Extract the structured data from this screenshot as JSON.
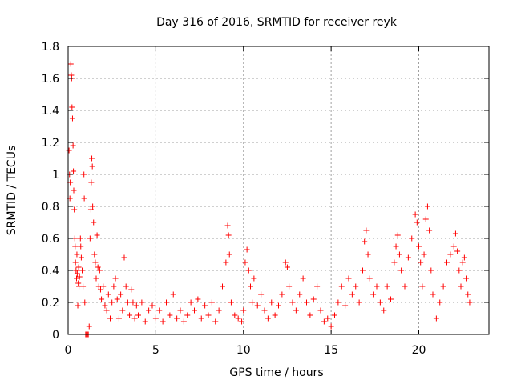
{
  "chart_data": {
    "type": "scatter",
    "title": "Day 316 of 2016, SRMTID for receiver reyk",
    "xlabel": "GPS time / hours",
    "ylabel": "SRMTID / TECUs",
    "xlim": [
      0,
      24
    ],
    "ylim": [
      0,
      1.8
    ],
    "xticks": [
      "0",
      "5",
      "10",
      "15",
      "20"
    ],
    "yticks": [
      "0",
      "0.2",
      "0.4",
      "0.6",
      "0.8",
      "1",
      "1.2",
      "1.4",
      "1.6",
      "1.8"
    ],
    "grid": true,
    "marker": "+",
    "color": "#ff0000",
    "series": [
      {
        "name": "SRMTID",
        "points": [
          [
            0.05,
            1.15
          ],
          [
            0.08,
            1.0
          ],
          [
            0.1,
            0.85
          ],
          [
            0.12,
            0.95
          ],
          [
            0.15,
            1.69
          ],
          [
            0.18,
            1.62
          ],
          [
            0.2,
            1.6
          ],
          [
            0.22,
            1.42
          ],
          [
            0.25,
            1.35
          ],
          [
            0.28,
            1.18
          ],
          [
            0.3,
            1.02
          ],
          [
            0.32,
            0.9
          ],
          [
            0.35,
            0.78
          ],
          [
            0.38,
            0.6
          ],
          [
            0.4,
            0.55
          ],
          [
            0.42,
            0.45
          ],
          [
            0.45,
            0.4
          ],
          [
            0.48,
            0.35
          ],
          [
            0.5,
            0.5
          ],
          [
            0.52,
            0.38
          ],
          [
            0.55,
            0.18
          ],
          [
            0.58,
            0.32
          ],
          [
            0.6,
            0.42
          ],
          [
            0.62,
            0.3
          ],
          [
            0.65,
            0.36
          ],
          [
            0.7,
            0.6
          ],
          [
            0.72,
            0.55
          ],
          [
            0.75,
            0.48
          ],
          [
            0.8,
            0.4
          ],
          [
            0.85,
            0.3
          ],
          [
            0.9,
            1.0
          ],
          [
            0.92,
            0.85
          ],
          [
            0.95,
            0.2
          ],
          [
            1.0,
            0.0
          ],
          [
            1.05,
            0.0
          ],
          [
            1.1,
            0.0
          ],
          [
            1.15,
            0.0
          ],
          [
            1.2,
            0.05
          ],
          [
            1.25,
            0.6
          ],
          [
            1.3,
            0.78
          ],
          [
            1.32,
            0.95
          ],
          [
            1.35,
            1.1
          ],
          [
            1.38,
            1.05
          ],
          [
            1.4,
            0.8
          ],
          [
            1.45,
            0.7
          ],
          [
            1.5,
            0.5
          ],
          [
            1.55,
            0.45
          ],
          [
            1.6,
            0.35
          ],
          [
            1.65,
            0.62
          ],
          [
            1.7,
            0.42
          ],
          [
            1.75,
            0.3
          ],
          [
            1.8,
            0.4
          ],
          [
            1.85,
            0.28
          ],
          [
            1.9,
            0.22
          ],
          [
            2.0,
            0.3
          ],
          [
            2.1,
            0.18
          ],
          [
            2.2,
            0.15
          ],
          [
            2.3,
            0.25
          ],
          [
            2.4,
            0.1
          ],
          [
            2.5,
            0.2
          ],
          [
            2.6,
            0.3
          ],
          [
            2.7,
            0.35
          ],
          [
            2.8,
            0.22
          ],
          [
            2.9,
            0.1
          ],
          [
            3.0,
            0.25
          ],
          [
            3.1,
            0.15
          ],
          [
            3.2,
            0.48
          ],
          [
            3.3,
            0.3
          ],
          [
            3.4,
            0.2
          ],
          [
            3.5,
            0.12
          ],
          [
            3.6,
            0.28
          ],
          [
            3.7,
            0.2
          ],
          [
            3.8,
            0.1
          ],
          [
            3.9,
            0.18
          ],
          [
            4.0,
            0.12
          ],
          [
            4.2,
            0.2
          ],
          [
            4.4,
            0.08
          ],
          [
            4.6,
            0.15
          ],
          [
            4.8,
            0.18
          ],
          [
            5.0,
            0.1
          ],
          [
            5.2,
            0.15
          ],
          [
            5.4,
            0.08
          ],
          [
            5.6,
            0.2
          ],
          [
            5.8,
            0.12
          ],
          [
            6.0,
            0.25
          ],
          [
            6.2,
            0.1
          ],
          [
            6.4,
            0.15
          ],
          [
            6.6,
            0.08
          ],
          [
            6.8,
            0.12
          ],
          [
            7.0,
            0.2
          ],
          [
            7.2,
            0.15
          ],
          [
            7.4,
            0.22
          ],
          [
            7.6,
            0.1
          ],
          [
            7.8,
            0.18
          ],
          [
            8.0,
            0.12
          ],
          [
            8.2,
            0.2
          ],
          [
            8.4,
            0.08
          ],
          [
            8.6,
            0.15
          ],
          [
            8.8,
            0.3
          ],
          [
            9.0,
            0.45
          ],
          [
            9.1,
            0.68
          ],
          [
            9.15,
            0.62
          ],
          [
            9.2,
            0.5
          ],
          [
            9.3,
            0.2
          ],
          [
            9.5,
            0.12
          ],
          [
            9.7,
            0.1
          ],
          [
            9.9,
            0.08
          ],
          [
            10.0,
            0.15
          ],
          [
            10.1,
            0.45
          ],
          [
            10.2,
            0.53
          ],
          [
            10.3,
            0.4
          ],
          [
            10.4,
            0.3
          ],
          [
            10.5,
            0.2
          ],
          [
            10.6,
            0.35
          ],
          [
            10.8,
            0.18
          ],
          [
            11.0,
            0.25
          ],
          [
            11.2,
            0.15
          ],
          [
            11.4,
            0.1
          ],
          [
            11.6,
            0.2
          ],
          [
            11.8,
            0.12
          ],
          [
            12.0,
            0.18
          ],
          [
            12.2,
            0.25
          ],
          [
            12.4,
            0.45
          ],
          [
            12.5,
            0.42
          ],
          [
            12.6,
            0.3
          ],
          [
            12.8,
            0.2
          ],
          [
            13.0,
            0.15
          ],
          [
            13.2,
            0.25
          ],
          [
            13.4,
            0.35
          ],
          [
            13.6,
            0.2
          ],
          [
            13.8,
            0.12
          ],
          [
            14.0,
            0.22
          ],
          [
            14.2,
            0.3
          ],
          [
            14.4,
            0.15
          ],
          [
            14.6,
            0.08
          ],
          [
            14.8,
            0.1
          ],
          [
            15.0,
            0.05
          ],
          [
            15.2,
            0.12
          ],
          [
            15.4,
            0.2
          ],
          [
            15.6,
            0.3
          ],
          [
            15.8,
            0.18
          ],
          [
            16.0,
            0.35
          ],
          [
            16.2,
            0.25
          ],
          [
            16.4,
            0.3
          ],
          [
            16.6,
            0.2
          ],
          [
            16.8,
            0.4
          ],
          [
            16.9,
            0.58
          ],
          [
            17.0,
            0.65
          ],
          [
            17.1,
            0.5
          ],
          [
            17.2,
            0.35
          ],
          [
            17.4,
            0.25
          ],
          [
            17.6,
            0.3
          ],
          [
            17.8,
            0.2
          ],
          [
            18.0,
            0.15
          ],
          [
            18.2,
            0.3
          ],
          [
            18.4,
            0.22
          ],
          [
            18.6,
            0.45
          ],
          [
            18.7,
            0.55
          ],
          [
            18.8,
            0.62
          ],
          [
            18.9,
            0.5
          ],
          [
            19.0,
            0.4
          ],
          [
            19.2,
            0.3
          ],
          [
            19.4,
            0.48
          ],
          [
            19.6,
            0.6
          ],
          [
            19.8,
            0.75
          ],
          [
            19.9,
            0.7
          ],
          [
            20.0,
            0.55
          ],
          [
            20.1,
            0.45
          ],
          [
            20.2,
            0.3
          ],
          [
            20.3,
            0.5
          ],
          [
            20.4,
            0.72
          ],
          [
            20.5,
            0.8
          ],
          [
            20.6,
            0.65
          ],
          [
            20.7,
            0.4
          ],
          [
            20.8,
            0.25
          ],
          [
            21.0,
            0.1
          ],
          [
            21.2,
            0.2
          ],
          [
            21.4,
            0.3
          ],
          [
            21.6,
            0.45
          ],
          [
            21.8,
            0.5
          ],
          [
            22.0,
            0.55
          ],
          [
            22.1,
            0.63
          ],
          [
            22.2,
            0.52
          ],
          [
            22.3,
            0.4
          ],
          [
            22.4,
            0.3
          ],
          [
            22.5,
            0.45
          ],
          [
            22.6,
            0.48
          ],
          [
            22.7,
            0.35
          ],
          [
            22.8,
            0.25
          ],
          [
            22.9,
            0.2
          ]
        ]
      }
    ]
  }
}
